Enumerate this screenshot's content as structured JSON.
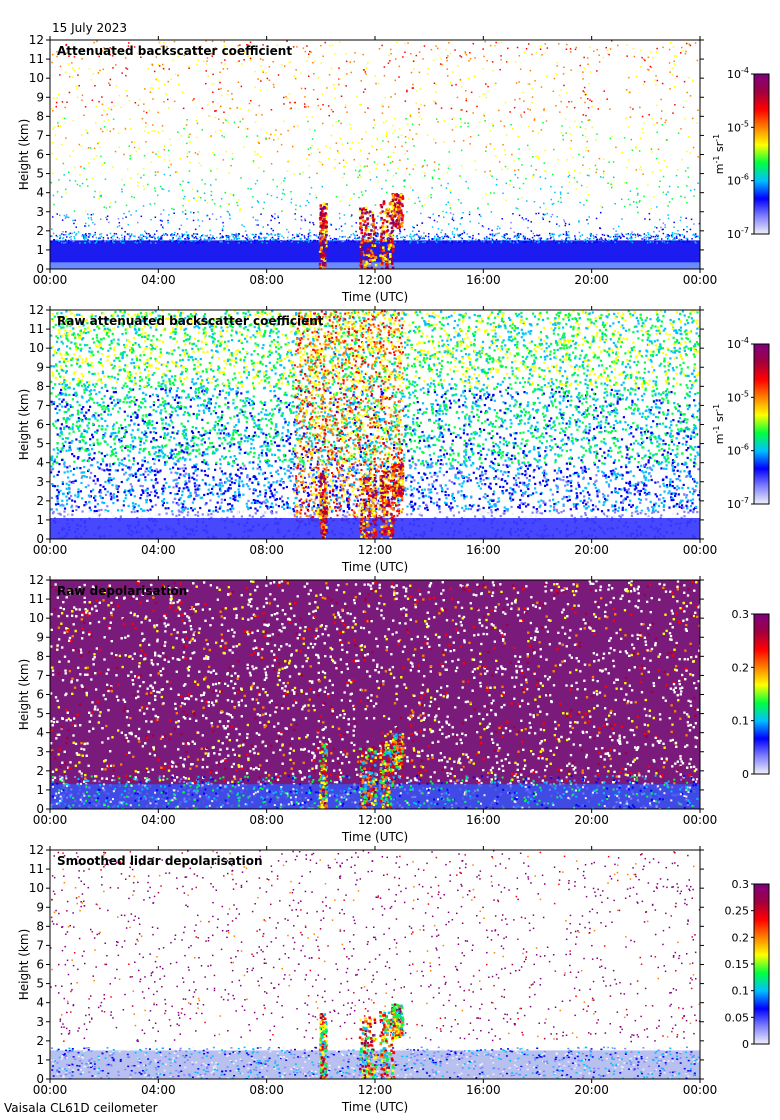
{
  "date_label": "15 July 2023",
  "instrument_label": "Vaisala CL61D ceilometer",
  "colorbar_unit_parts": [
    "m",
    "-1",
    " sr",
    "-1"
  ],
  "colormap": [
    "#f0f0f8",
    "#8080ff",
    "#0000ff",
    "#00c0ff",
    "#00ff40",
    "#ffff00",
    "#ff8000",
    "#ff0000",
    "#a00040",
    "#800080"
  ],
  "chart_data": [
    {
      "type": "heatmap",
      "title": "Attenuated backscatter coefficient",
      "xlabel": "Time (UTC)",
      "ylabel": "Height (km)",
      "x_ticks": [
        "00:00",
        "04:00",
        "08:00",
        "12:00",
        "16:00",
        "20:00",
        "00:00"
      ],
      "y_ticks": [
        0,
        1,
        2,
        3,
        4,
        5,
        6,
        7,
        8,
        9,
        10,
        11,
        12
      ],
      "ylim": [
        0,
        12
      ],
      "colorbar": {
        "scale": "log",
        "range": [
          1e-07,
          0.0001
        ],
        "ticks": [
          {
            "base": "10",
            "exp": "-4"
          },
          {
            "base": "10",
            "exp": "-5"
          },
          {
            "base": "10",
            "exp": "-6"
          },
          {
            "base": "10",
            "exp": "-7"
          }
        ],
        "unit": true
      }
    },
    {
      "type": "heatmap",
      "title": "Raw attenuated backscatter coefficient",
      "xlabel": "Time (UTC)",
      "ylabel": "Height (km)",
      "x_ticks": [
        "00:00",
        "04:00",
        "08:00",
        "12:00",
        "16:00",
        "20:00",
        "00:00"
      ],
      "y_ticks": [
        0,
        1,
        2,
        3,
        4,
        5,
        6,
        7,
        8,
        9,
        10,
        11,
        12
      ],
      "ylim": [
        0,
        12
      ],
      "colorbar": {
        "scale": "log",
        "range": [
          1e-07,
          0.0001
        ],
        "ticks": [
          {
            "base": "10",
            "exp": "-4"
          },
          {
            "base": "10",
            "exp": "-5"
          },
          {
            "base": "10",
            "exp": "-6"
          },
          {
            "base": "10",
            "exp": "-7"
          }
        ],
        "unit": true
      }
    },
    {
      "type": "heatmap",
      "title": "Raw depolarisation",
      "xlabel": "Time (UTC)",
      "ylabel": "Height (km)",
      "x_ticks": [
        "00:00",
        "04:00",
        "08:00",
        "12:00",
        "16:00",
        "20:00",
        "00:00"
      ],
      "y_ticks": [
        0,
        1,
        2,
        3,
        4,
        5,
        6,
        7,
        8,
        9,
        10,
        11,
        12
      ],
      "ylim": [
        0,
        12
      ],
      "colorbar": {
        "scale": "linear",
        "range": [
          0,
          0.3
        ],
        "ticks": [
          {
            "base": "0.3"
          },
          {
            "base": "0.2"
          },
          {
            "base": "0.1"
          },
          {
            "base": "0"
          }
        ],
        "unit": false
      }
    },
    {
      "type": "heatmap",
      "title": "Smoothed lidar depolarisation",
      "xlabel": "Time (UTC)",
      "ylabel": "Height (km)",
      "x_ticks": [
        "00:00",
        "04:00",
        "08:00",
        "12:00",
        "16:00",
        "20:00",
        "00:00"
      ],
      "y_ticks": [
        0,
        1,
        2,
        3,
        4,
        5,
        6,
        7,
        8,
        9,
        10,
        11,
        12
      ],
      "ylim": [
        0,
        12
      ],
      "colorbar": {
        "scale": "linear",
        "range": [
          0,
          0.3
        ],
        "ticks": [
          {
            "base": "0.3"
          },
          {
            "base": "0.25"
          },
          {
            "base": "0.2"
          },
          {
            "base": "0.15"
          },
          {
            "base": "0.1"
          },
          {
            "base": "0.05"
          },
          {
            "base": "0"
          }
        ],
        "unit": false
      }
    }
  ]
}
